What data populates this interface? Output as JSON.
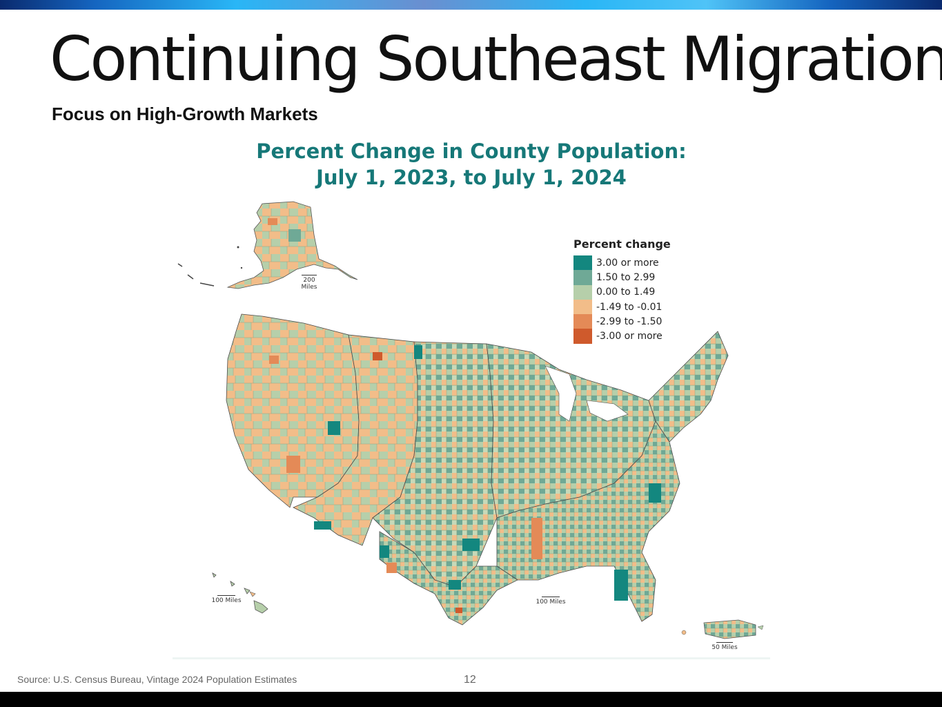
{
  "slide": {
    "title": "Continuing Southeast Migration",
    "subtitle": "Focus on High-Growth Markets",
    "page_number": "12",
    "source": "Source: U.S. Census Bureau, Vintage 2024 Population Estimates"
  },
  "map": {
    "title_line1": "Percent Change in County Population:",
    "title_line2": "July 1, 2023, to July 1, 2024",
    "legend_title": "Percent change",
    "legend": [
      {
        "label": "3.00 or more",
        "color": "#13877f"
      },
      {
        "label": "1.50 to 2.99",
        "color": "#6fa996"
      },
      {
        "label": "0.00 to 1.49",
        "color": "#b6cfaa"
      },
      {
        "label": "-1.49 to -0.01",
        "color": "#f2bd89"
      },
      {
        "label": "-2.99 to -1.50",
        "color": "#e48a57"
      },
      {
        "label": "-3.00 or more",
        "color": "#cf5a2c"
      }
    ],
    "scale_alaska": "200 Miles",
    "scale_hawaii": "100 Miles",
    "scale_conus": "100 Miles",
    "scale_pr": "50 Miles"
  },
  "colors": {
    "title_teal": "#167878",
    "state_border": "#4a4a4a"
  }
}
